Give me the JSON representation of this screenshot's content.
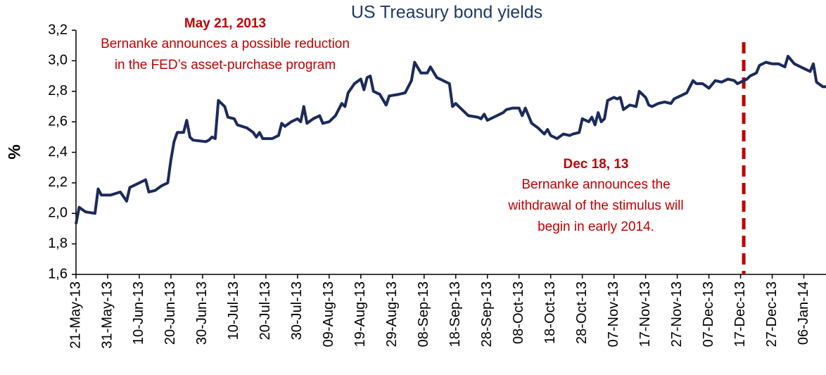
{
  "chart_data": {
    "type": "line",
    "title": "US Treasury bond yields",
    "y_label": "%",
    "color": "#1b2a5c",
    "annotations": [
      {
        "title": "May 21, 2013",
        "lines": [
          "Bernanke announces a possible reduction",
          "in the FED’s asset-purchase program"
        ]
      },
      {
        "title": "Dec 18, 13",
        "lines": [
          "Bernanke announces the",
          "withdrawal of the stimulus will",
          "begin in early 2014."
        ]
      }
    ],
    "event_line": {
      "x": "2013-12-18",
      "color": "#c00000",
      "dashed": true
    },
    "xlim": [
      "2013-05-21",
      "2014-01-13"
    ],
    "xticks": [
      {
        "value": "2013-05-21",
        "label": "21-May-13"
      },
      {
        "value": "2013-05-31",
        "label": "31-May-13"
      },
      {
        "value": "2013-06-10",
        "label": "10-Jun-13"
      },
      {
        "value": "2013-06-20",
        "label": "20-Jun-13"
      },
      {
        "value": "2013-06-30",
        "label": "30-Jun-13"
      },
      {
        "value": "2013-07-10",
        "label": "10-Jul-13"
      },
      {
        "value": "2013-07-20",
        "label": "20-Jul-13"
      },
      {
        "value": "2013-07-30",
        "label": "30-Jul-13"
      },
      {
        "value": "2013-08-09",
        "label": "09-Aug-13"
      },
      {
        "value": "2013-08-19",
        "label": "19-Aug-13"
      },
      {
        "value": "2013-08-29",
        "label": "29-Aug-13"
      },
      {
        "value": "2013-09-08",
        "label": "08-Sep-13"
      },
      {
        "value": "2013-09-18",
        "label": "18-Sep-13"
      },
      {
        "value": "2013-09-28",
        "label": "28-Sep-13"
      },
      {
        "value": "2013-10-08",
        "label": "08-Oct-13"
      },
      {
        "value": "2013-10-18",
        "label": "18-Oct-13"
      },
      {
        "value": "2013-10-28",
        "label": "28-Oct-13"
      },
      {
        "value": "2013-11-07",
        "label": "07-Nov-13"
      },
      {
        "value": "2013-11-17",
        "label": "17-Nov-13"
      },
      {
        "value": "2013-11-27",
        "label": "27-Nov-13"
      },
      {
        "value": "2013-12-07",
        "label": "07-Dec-13"
      },
      {
        "value": "2013-12-17",
        "label": "17-Dec-13"
      },
      {
        "value": "2013-12-27",
        "label": "27-Dec-13"
      },
      {
        "value": "2014-01-06",
        "label": "06-Jan-14"
      }
    ],
    "ylim": [
      1.6,
      3.2
    ],
    "yticks": [
      {
        "value": 1.6,
        "label": "1,6"
      },
      {
        "value": 1.8,
        "label": "1,8"
      },
      {
        "value": 2.0,
        "label": "2,0"
      },
      {
        "value": 2.2,
        "label": "2,2"
      },
      {
        "value": 2.4,
        "label": "2,4"
      },
      {
        "value": 2.6,
        "label": "2,6"
      },
      {
        "value": 2.8,
        "label": "2,8"
      },
      {
        "value": 3.0,
        "label": "3,0"
      },
      {
        "value": 3.2,
        "label": "3,2"
      }
    ],
    "x": [
      "2013-05-21",
      "2013-05-22",
      "2013-05-24",
      "2013-05-27",
      "2013-05-28",
      "2013-05-29",
      "2013-06-01",
      "2013-06-04",
      "2013-06-06",
      "2013-06-07",
      "2013-06-10",
      "2013-06-12",
      "2013-06-13",
      "2013-06-15",
      "2013-06-17",
      "2013-06-19",
      "2013-06-20",
      "2013-06-21",
      "2013-06-22",
      "2013-06-24",
      "2013-06-25",
      "2013-06-26",
      "2013-06-27",
      "2013-07-01",
      "2013-07-02",
      "2013-07-03",
      "2013-07-04",
      "2013-07-05",
      "2013-07-07",
      "2013-07-08",
      "2013-07-10",
      "2013-07-11",
      "2013-07-14",
      "2013-07-16",
      "2013-07-17",
      "2013-07-18",
      "2013-07-19",
      "2013-07-22",
      "2013-07-24",
      "2013-07-25",
      "2013-07-26",
      "2013-07-28",
      "2013-07-30",
      "2013-07-31",
      "2013-08-01",
      "2013-08-02",
      "2013-08-04",
      "2013-08-06",
      "2013-08-07",
      "2013-08-09",
      "2013-08-11",
      "2013-08-13",
      "2013-08-14",
      "2013-08-15",
      "2013-08-17",
      "2013-08-19",
      "2013-08-20",
      "2013-08-21",
      "2013-08-22",
      "2013-08-23",
      "2013-08-25",
      "2013-08-27",
      "2013-08-28",
      "2013-08-31",
      "2013-09-02",
      "2013-09-04",
      "2013-09-05",
      "2013-09-07",
      "2013-09-09",
      "2013-09-10",
      "2013-09-12",
      "2013-09-14",
      "2013-09-16",
      "2013-09-17",
      "2013-09-18",
      "2013-09-20",
      "2013-09-22",
      "2013-09-25",
      "2013-09-26",
      "2013-09-27",
      "2013-09-28",
      "2013-10-01",
      "2013-10-03",
      "2013-10-04",
      "2013-10-06",
      "2013-10-08",
      "2013-10-09",
      "2013-10-10",
      "2013-10-12",
      "2013-10-14",
      "2013-10-16",
      "2013-10-17",
      "2013-10-18",
      "2013-10-20",
      "2013-10-22",
      "2013-10-24",
      "2013-10-25",
      "2013-10-27",
      "2013-10-28",
      "2013-10-30",
      "2013-10-31",
      "2013-11-01",
      "2013-11-02",
      "2013-11-03",
      "2013-11-04",
      "2013-11-05",
      "2013-11-07",
      "2013-11-08",
      "2013-11-09",
      "2013-11-10",
      "2013-11-12",
      "2013-11-14",
      "2013-11-15",
      "2013-11-17",
      "2013-11-18",
      "2013-11-19",
      "2013-11-21",
      "2013-11-23",
      "2013-11-25",
      "2013-11-26",
      "2013-11-28",
      "2013-11-30",
      "2013-12-02",
      "2013-12-03",
      "2013-12-05",
      "2013-12-07",
      "2013-12-09",
      "2013-12-11",
      "2013-12-13",
      "2013-12-15",
      "2013-12-16",
      "2013-12-19",
      "2013-12-20",
      "2013-12-22",
      "2013-12-23",
      "2013-12-25",
      "2013-12-27",
      "2013-12-29",
      "2013-12-31",
      "2014-01-01",
      "2014-01-03",
      "2014-01-05",
      "2014-01-08",
      "2014-01-09",
      "2014-01-10",
      "2014-01-12",
      "2014-01-13"
    ],
    "values": [
      1.93,
      2.04,
      2.01,
      2.0,
      2.16,
      2.12,
      2.12,
      2.14,
      2.08,
      2.17,
      2.2,
      2.22,
      2.14,
      2.15,
      2.18,
      2.2,
      2.35,
      2.47,
      2.53,
      2.53,
      2.61,
      2.5,
      2.48,
      2.47,
      2.48,
      2.5,
      2.49,
      2.74,
      2.7,
      2.63,
      2.62,
      2.58,
      2.56,
      2.53,
      2.5,
      2.53,
      2.49,
      2.49,
      2.51,
      2.59,
      2.57,
      2.6,
      2.62,
      2.6,
      2.7,
      2.59,
      2.62,
      2.64,
      2.59,
      2.6,
      2.64,
      2.72,
      2.7,
      2.79,
      2.85,
      2.88,
      2.81,
      2.89,
      2.9,
      2.8,
      2.78,
      2.71,
      2.77,
      2.78,
      2.79,
      2.87,
      2.99,
      2.92,
      2.92,
      2.96,
      2.89,
      2.87,
      2.85,
      2.7,
      2.72,
      2.68,
      2.64,
      2.63,
      2.62,
      2.65,
      2.61,
      2.64,
      2.66,
      2.68,
      2.69,
      2.69,
      2.64,
      2.69,
      2.59,
      2.56,
      2.52,
      2.55,
      2.51,
      2.49,
      2.52,
      2.51,
      2.52,
      2.53,
      2.62,
      2.6,
      2.63,
      2.58,
      2.66,
      2.6,
      2.62,
      2.74,
      2.76,
      2.75,
      2.76,
      2.68,
      2.71,
      2.7,
      2.8,
      2.76,
      2.71,
      2.7,
      2.72,
      2.73,
      2.72,
      2.75,
      2.77,
      2.79,
      2.87,
      2.85,
      2.85,
      2.82,
      2.87,
      2.86,
      2.88,
      2.87,
      2.85,
      2.88,
      2.9,
      2.92,
      2.97,
      2.99,
      2.98,
      2.98,
      2.96,
      3.03,
      2.98,
      2.96,
      2.93,
      2.98,
      2.86,
      2.83,
      2.83
    ]
  }
}
